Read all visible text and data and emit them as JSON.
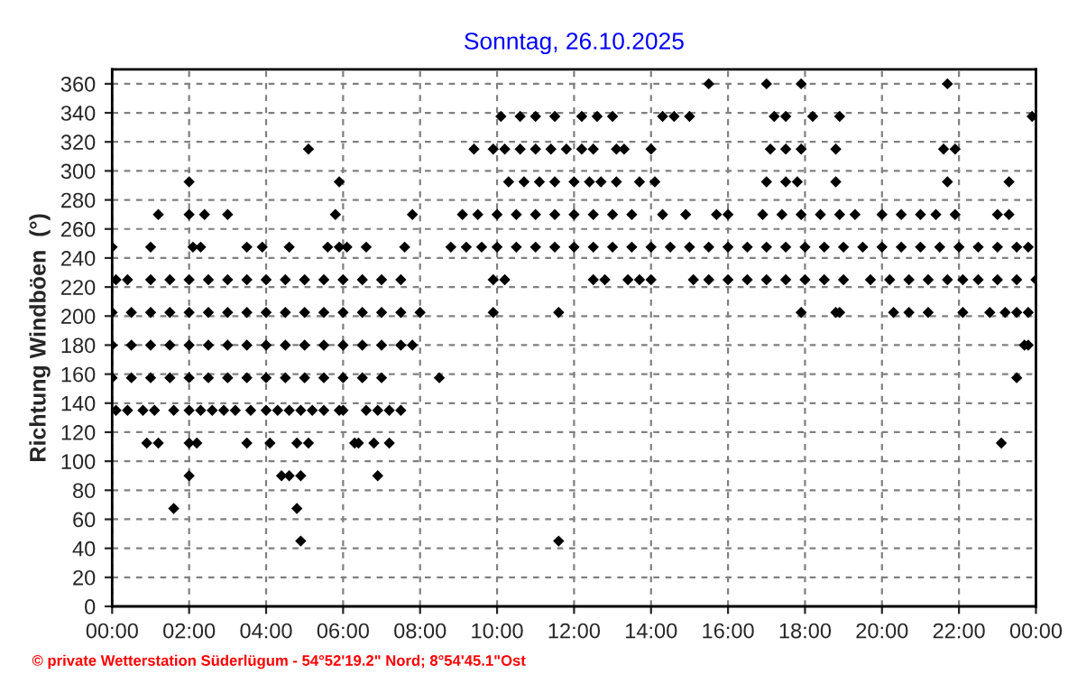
{
  "chart_data": {
    "type": "scatter",
    "title": "Sonntag, 26.10.2025",
    "ylabel": "Richtung Windböen  (°)",
    "xlim": [
      0,
      24
    ],
    "ylim": [
      0,
      370
    ],
    "xticks": [
      {
        "value": 0,
        "label": "00:00"
      },
      {
        "value": 2,
        "label": "02:00"
      },
      {
        "value": 4,
        "label": "04:00"
      },
      {
        "value": 6,
        "label": "06:00"
      },
      {
        "value": 8,
        "label": "08:00"
      },
      {
        "value": 10,
        "label": "10:00"
      },
      {
        "value": 12,
        "label": "12:00"
      },
      {
        "value": 14,
        "label": "14:00"
      },
      {
        "value": 16,
        "label": "16:00"
      },
      {
        "value": 18,
        "label": "18:00"
      },
      {
        "value": 20,
        "label": "20:00"
      },
      {
        "value": 22,
        "label": "22:00"
      },
      {
        "value": 24,
        "label": "00:00"
      }
    ],
    "yticks": [
      0,
      20,
      40,
      60,
      80,
      100,
      120,
      140,
      160,
      180,
      200,
      220,
      240,
      260,
      280,
      300,
      320,
      340,
      360
    ],
    "grid": true,
    "marker": "diamond",
    "annotations": [
      "© private Wetterstation Süderlügum - 54°52'19.2\" Nord; 8°54'45.1\"Ost"
    ],
    "series": [
      {
        "color": "#000000",
        "x": [
          15.5,
          17.0,
          17.9,
          21.7
        ],
        "values": [
          360,
          360,
          360,
          360
        ]
      },
      {
        "color": "#000000",
        "x": [
          10.1,
          10.6,
          11.0,
          11.5,
          12.2,
          12.6,
          13.0,
          14.3,
          14.6,
          15.0,
          17.2,
          17.5,
          18.2,
          18.9,
          23.9
        ],
        "values": [
          337.5,
          337.5,
          337.5,
          337.5,
          337.5,
          337.5,
          337.5,
          337.5,
          337.5,
          337.5,
          337.5,
          337.5,
          337.5,
          337.5,
          337.5
        ]
      },
      {
        "color": "#000000",
        "x": [
          5.1,
          9.4,
          9.9,
          10.2,
          10.6,
          11.0,
          11.4,
          11.8,
          12.2,
          12.5,
          13.1,
          13.3,
          14.0,
          17.1,
          17.5,
          17.9,
          18.8,
          21.6,
          21.9
        ],
        "values": [
          315,
          315,
          315,
          315,
          315,
          315,
          315,
          315,
          315,
          315,
          315,
          315,
          315,
          315,
          315,
          315,
          315,
          315,
          315
        ]
      },
      {
        "color": "#000000",
        "x": [
          2.0,
          5.9,
          10.3,
          10.7,
          11.1,
          11.5,
          12.0,
          12.4,
          12.7,
          13.1,
          13.7,
          14.1,
          17.0,
          17.5,
          17.8,
          18.8,
          21.7,
          23.3
        ],
        "values": [
          292.5,
          292.5,
          292.5,
          292.5,
          292.5,
          292.5,
          292.5,
          292.5,
          292.5,
          292.5,
          292.5,
          292.5,
          292.5,
          292.5,
          292.5,
          292.5,
          292.5,
          292.5
        ]
      },
      {
        "color": "#000000",
        "x": [
          1.2,
          2.0,
          2.4,
          3.0,
          5.8,
          7.8,
          9.1,
          9.5,
          10.0,
          10.5,
          11.0,
          11.5,
          12.0,
          12.5,
          13.0,
          13.5,
          14.3,
          14.9,
          15.7,
          16.0,
          16.9,
          17.4,
          17.9,
          18.4,
          18.9,
          19.3,
          20.0,
          20.5,
          21.0,
          21.4,
          21.9,
          23.0,
          23.3
        ],
        "values": [
          270,
          270,
          270,
          270,
          270,
          270,
          270,
          270,
          270,
          270,
          270,
          270,
          270,
          270,
          270,
          270,
          270,
          270,
          270,
          270,
          270,
          270,
          270,
          270,
          270,
          270,
          270,
          270,
          270,
          270,
          270,
          270,
          270
        ]
      },
      {
        "color": "#000000",
        "x": [
          0.0,
          1.0,
          2.1,
          2.3,
          3.5,
          3.9,
          4.6,
          5.6,
          5.9,
          6.1,
          6.6,
          7.6,
          8.8,
          9.2,
          9.6,
          10.0,
          10.5,
          11.0,
          11.5,
          12.0,
          12.5,
          13.0,
          13.5,
          14.0,
          14.5,
          15.0,
          15.5,
          16.0,
          16.5,
          17.0,
          17.5,
          18.0,
          18.5,
          19.0,
          19.5,
          20.0,
          20.5,
          21.0,
          21.5,
          22.0,
          22.5,
          23.0,
          23.5,
          23.8
        ],
        "values": [
          247.5,
          247.5,
          247.5,
          247.5,
          247.5,
          247.5,
          247.5,
          247.5,
          247.5,
          247.5,
          247.5,
          247.5,
          247.5,
          247.5,
          247.5,
          247.5,
          247.5,
          247.5,
          247.5,
          247.5,
          247.5,
          247.5,
          247.5,
          247.5,
          247.5,
          247.5,
          247.5,
          247.5,
          247.5,
          247.5,
          247.5,
          247.5,
          247.5,
          247.5,
          247.5,
          247.5,
          247.5,
          247.5,
          247.5,
          247.5,
          247.5,
          247.5,
          247.5,
          247.5
        ]
      },
      {
        "color": "#000000",
        "x": [
          0.1,
          0.4,
          1.0,
          1.5,
          2.0,
          2.5,
          3.0,
          3.5,
          4.0,
          4.5,
          5.0,
          5.5,
          6.0,
          6.5,
          7.0,
          7.5,
          9.9,
          10.2,
          12.5,
          12.8,
          13.4,
          13.7,
          14.0,
          15.1,
          15.5,
          16.0,
          16.5,
          17.0,
          17.5,
          18.0,
          18.5,
          19.0,
          19.7,
          20.2,
          20.7,
          21.2,
          21.7,
          22.1,
          22.5,
          23.0,
          23.5,
          24.0
        ],
        "values": [
          225,
          225,
          225,
          225,
          225,
          225,
          225,
          225,
          225,
          225,
          225,
          225,
          225,
          225,
          225,
          225,
          225,
          225,
          225,
          225,
          225,
          225,
          225,
          225,
          225,
          225,
          225,
          225,
          225,
          225,
          225,
          225,
          225,
          225,
          225,
          225,
          225,
          225,
          225,
          225,
          225,
          225
        ]
      },
      {
        "color": "#000000",
        "x": [
          0.0,
          0.5,
          1.0,
          1.5,
          2.0,
          2.5,
          3.0,
          3.5,
          4.0,
          4.5,
          5.0,
          5.5,
          6.0,
          6.5,
          7.0,
          7.5,
          8.0,
          9.9,
          11.6,
          17.9,
          18.8,
          18.9,
          20.3,
          20.7,
          21.2,
          22.1,
          22.8,
          23.2,
          23.5,
          23.8
        ],
        "values": [
          202.5,
          202.5,
          202.5,
          202.5,
          202.5,
          202.5,
          202.5,
          202.5,
          202.5,
          202.5,
          202.5,
          202.5,
          202.5,
          202.5,
          202.5,
          202.5,
          202.5,
          202.5,
          202.5,
          202.5,
          202.5,
          202.5,
          202.5,
          202.5,
          202.5,
          202.5,
          202.5,
          202.5,
          202.5,
          202.5
        ]
      },
      {
        "color": "#000000",
        "x": [
          0.0,
          0.5,
          1.0,
          1.5,
          2.0,
          2.5,
          3.0,
          3.5,
          4.0,
          4.5,
          5.0,
          5.5,
          6.0,
          6.5,
          7.0,
          7.5,
          7.8,
          23.7,
          23.8
        ],
        "values": [
          180,
          180,
          180,
          180,
          180,
          180,
          180,
          180,
          180,
          180,
          180,
          180,
          180,
          180,
          180,
          180,
          180,
          180,
          180
        ]
      },
      {
        "color": "#000000",
        "x": [
          0.0,
          0.5,
          1.0,
          1.5,
          2.0,
          2.5,
          3.0,
          3.5,
          4.0,
          4.5,
          5.0,
          5.5,
          6.0,
          6.5,
          7.0,
          8.5,
          23.5
        ],
        "values": [
          157.5,
          157.5,
          157.5,
          157.5,
          157.5,
          157.5,
          157.5,
          157.5,
          157.5,
          157.5,
          157.5,
          157.5,
          157.5,
          157.5,
          157.5,
          157.5,
          157.5
        ]
      },
      {
        "color": "#000000",
        "x": [
          0.1,
          0.4,
          0.8,
          1.1,
          1.6,
          2.0,
          2.3,
          2.6,
          2.9,
          3.2,
          3.6,
          4.0,
          4.3,
          4.6,
          4.9,
          5.2,
          5.5,
          5.9,
          6.0,
          6.6,
          6.9,
          7.2,
          7.5
        ],
        "values": [
          135,
          135,
          135,
          135,
          135,
          135,
          135,
          135,
          135,
          135,
          135,
          135,
          135,
          135,
          135,
          135,
          135,
          135,
          135,
          135,
          135,
          135,
          135
        ]
      },
      {
        "color": "#000000",
        "x": [
          0.9,
          1.2,
          2.0,
          2.2,
          3.5,
          4.1,
          4.8,
          5.1,
          6.3,
          6.4,
          6.8,
          7.2,
          23.1
        ],
        "values": [
          112.5,
          112.5,
          112.5,
          112.5,
          112.5,
          112.5,
          112.5,
          112.5,
          112.5,
          112.5,
          112.5,
          112.5,
          112.5
        ]
      },
      {
        "color": "#000000",
        "x": [
          2.0,
          4.4,
          4.6,
          4.9,
          6.9
        ],
        "values": [
          90,
          90,
          90,
          90,
          90
        ]
      },
      {
        "color": "#000000",
        "x": [
          1.6,
          4.8
        ],
        "values": [
          67.5,
          67.5
        ]
      },
      {
        "color": "#000000",
        "x": [
          4.9,
          11.6
        ],
        "values": [
          45,
          45
        ]
      }
    ]
  }
}
